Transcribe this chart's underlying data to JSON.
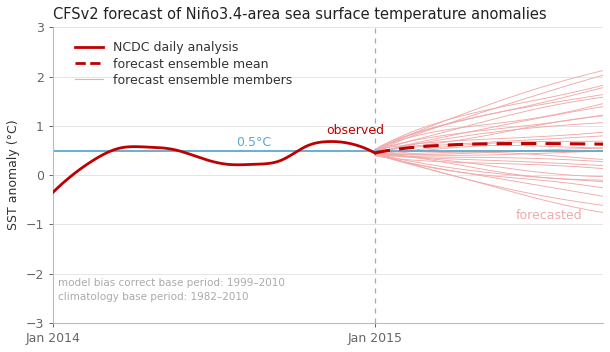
{
  "title": "CFSv2 forecast of Niño3.4-area sea surface temperature anomalies",
  "ylabel": "SST anomaly (°C)",
  "ylim": [
    -3,
    3
  ],
  "yticks": [
    -3,
    -2,
    -1,
    0,
    1,
    2,
    3
  ],
  "background_color": "#ffffff",
  "observed_color": "#c00000",
  "ensemble_mean_color": "#c00000",
  "ensemble_member_color": "#f0aaaa",
  "clim_line_color": "#5aaacc",
  "clim_value": 0.5,
  "clim_label": "0.5°C",
  "observed_label": "observed",
  "forecasted_label": "forecasted",
  "legend_entries": [
    {
      "label": "NCDC daily analysis",
      "color": "#c00000",
      "lw": 2.0,
      "ls": "solid"
    },
    {
      "label": "forecast ensemble mean",
      "color": "#c00000",
      "lw": 2.0,
      "ls": "dashed"
    },
    {
      "label": "forecast ensemble members",
      "color": "#f0aaaa",
      "lw": 0.8,
      "ls": "solid"
    }
  ],
  "footnote_line1": "model bias correct base period: 1999–2010",
  "footnote_line2": "climatology base period: 1982–2010",
  "title_fontsize": 10.5,
  "axis_fontsize": 9,
  "legend_fontsize": 9,
  "tick_fontsize": 9,
  "spine_color": "#bbbbbb",
  "grid_color": "#e0e0e0",
  "tick_color": "#666666",
  "label_color": "#333333",
  "footnote_color": "#aaaaaa",
  "annotation_fontsize": 9
}
